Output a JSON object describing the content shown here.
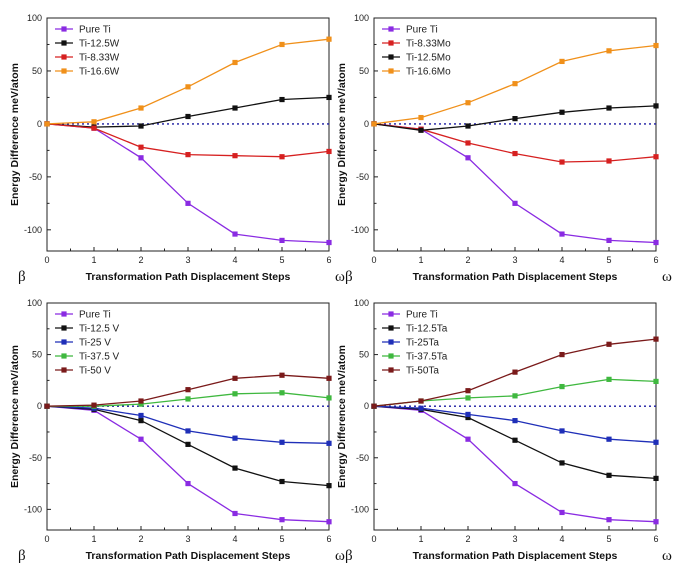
{
  "chart_data": [
    {
      "type": "line",
      "title": "",
      "xlabel": "Transformation Path Displacement Steps",
      "ylabel": "Energy Difference meV/atom",
      "x_start_label": "β",
      "x_end_label": "ω",
      "x": [
        0,
        1,
        2,
        3,
        4,
        5,
        6
      ],
      "xlim": [
        0,
        6
      ],
      "ylim": [
        -120,
        100
      ],
      "yticks": [
        -100,
        -50,
        0,
        50,
        100
      ],
      "zero_line": true,
      "legend_position": "top-left",
      "series": [
        {
          "name": "Pure Ti",
          "color": "#8a2be2",
          "values": [
            0,
            -4,
            -32,
            -75,
            -104,
            -110,
            -112
          ]
        },
        {
          "name": "Ti-12.5W",
          "color": "#111111",
          "values": [
            0,
            -3,
            -2,
            7,
            15,
            23,
            25
          ]
        },
        {
          "name": "Ti-8.33W",
          "color": "#d62020",
          "values": [
            0,
            -4,
            -22,
            -29,
            -30,
            -31,
            -26
          ]
        },
        {
          "name": "Ti-16.6W",
          "color": "#f0901a",
          "values": [
            0,
            2,
            15,
            35,
            58,
            75,
            80
          ]
        }
      ]
    },
    {
      "type": "line",
      "title": "",
      "xlabel": "Transformation Path Displacement Steps",
      "ylabel": "Energy Difference meV/atom",
      "x_start_label": "β",
      "x_end_label": "ω",
      "x": [
        0,
        1,
        2,
        3,
        4,
        5,
        6
      ],
      "xlim": [
        0,
        6
      ],
      "ylim": [
        -120,
        100
      ],
      "yticks": [
        -100,
        -50,
        0,
        50,
        100
      ],
      "zero_line": true,
      "legend_position": "top-left",
      "series": [
        {
          "name": "Pure Ti",
          "color": "#8a2be2",
          "values": [
            0,
            -5,
            -32,
            -75,
            -104,
            -110,
            -112
          ]
        },
        {
          "name": "Ti-8.33Mo",
          "color": "#d62020",
          "values": [
            0,
            -5,
            -18,
            -28,
            -36,
            -35,
            -31
          ]
        },
        {
          "name": "Ti-12.5Mo",
          "color": "#111111",
          "values": [
            0,
            -6,
            -2,
            5,
            11,
            15,
            17
          ]
        },
        {
          "name": "Ti-16.6Mo",
          "color": "#f0901a",
          "values": [
            0,
            6,
            20,
            38,
            59,
            69,
            74
          ]
        }
      ]
    },
    {
      "type": "line",
      "title": "",
      "xlabel": "Transformation Path Displacement Steps",
      "ylabel": "Energy Difference meV/atom",
      "x_start_label": "β",
      "x_end_label": "ω",
      "x": [
        0,
        1,
        2,
        3,
        4,
        5,
        6
      ],
      "xlim": [
        0,
        6
      ],
      "ylim": [
        -120,
        100
      ],
      "yticks": [
        -100,
        -50,
        0,
        50,
        100
      ],
      "zero_line": true,
      "legend_position": "top-left",
      "series": [
        {
          "name": "Pure Ti",
          "color": "#8a2be2",
          "values": [
            0,
            -4,
            -32,
            -75,
            -104,
            -110,
            -112
          ]
        },
        {
          "name": "Ti-12.5 V",
          "color": "#111111",
          "values": [
            0,
            -3,
            -14,
            -37,
            -60,
            -73,
            -77
          ]
        },
        {
          "name": "Ti-25 V",
          "color": "#1f2fb8",
          "values": [
            0,
            -2,
            -9,
            -24,
            -31,
            -35,
            -36
          ]
        },
        {
          "name": "Ti-37.5 V",
          "color": "#3fb83f",
          "values": [
            0,
            0,
            2,
            7,
            12,
            13,
            8
          ]
        },
        {
          "name": "Ti-50 V",
          "color": "#7a1a1a",
          "values": [
            0,
            1,
            5,
            16,
            27,
            30,
            27
          ]
        }
      ]
    },
    {
      "type": "line",
      "title": "",
      "xlabel": "Transformation Path Displacement Steps",
      "ylabel": "Energy Difference meV/atom",
      "x_start_label": "β",
      "x_end_label": "ω",
      "x": [
        0,
        1,
        2,
        3,
        4,
        5,
        6
      ],
      "xlim": [
        0,
        6
      ],
      "ylim": [
        -120,
        100
      ],
      "yticks": [
        -100,
        -50,
        0,
        50,
        100
      ],
      "zero_line": true,
      "legend_position": "top-left",
      "series": [
        {
          "name": "Pure Ti",
          "color": "#8a2be2",
          "values": [
            0,
            -4,
            -32,
            -75,
            -103,
            -110,
            -112
          ]
        },
        {
          "name": "Ti-12.5Ta",
          "color": "#111111",
          "values": [
            0,
            -3,
            -11,
            -33,
            -55,
            -67,
            -70
          ]
        },
        {
          "name": "Ti-25Ta",
          "color": "#1f2fb8",
          "values": [
            0,
            -2,
            -8,
            -14,
            -24,
            -32,
            -35
          ]
        },
        {
          "name": "Ti-37.5Ta",
          "color": "#3fb83f",
          "values": [
            0,
            5,
            8,
            10,
            19,
            26,
            24
          ]
        },
        {
          "name": "Ti-50Ta",
          "color": "#7a1a1a",
          "values": [
            0,
            5,
            15,
            33,
            50,
            60,
            65
          ]
        }
      ]
    }
  ]
}
